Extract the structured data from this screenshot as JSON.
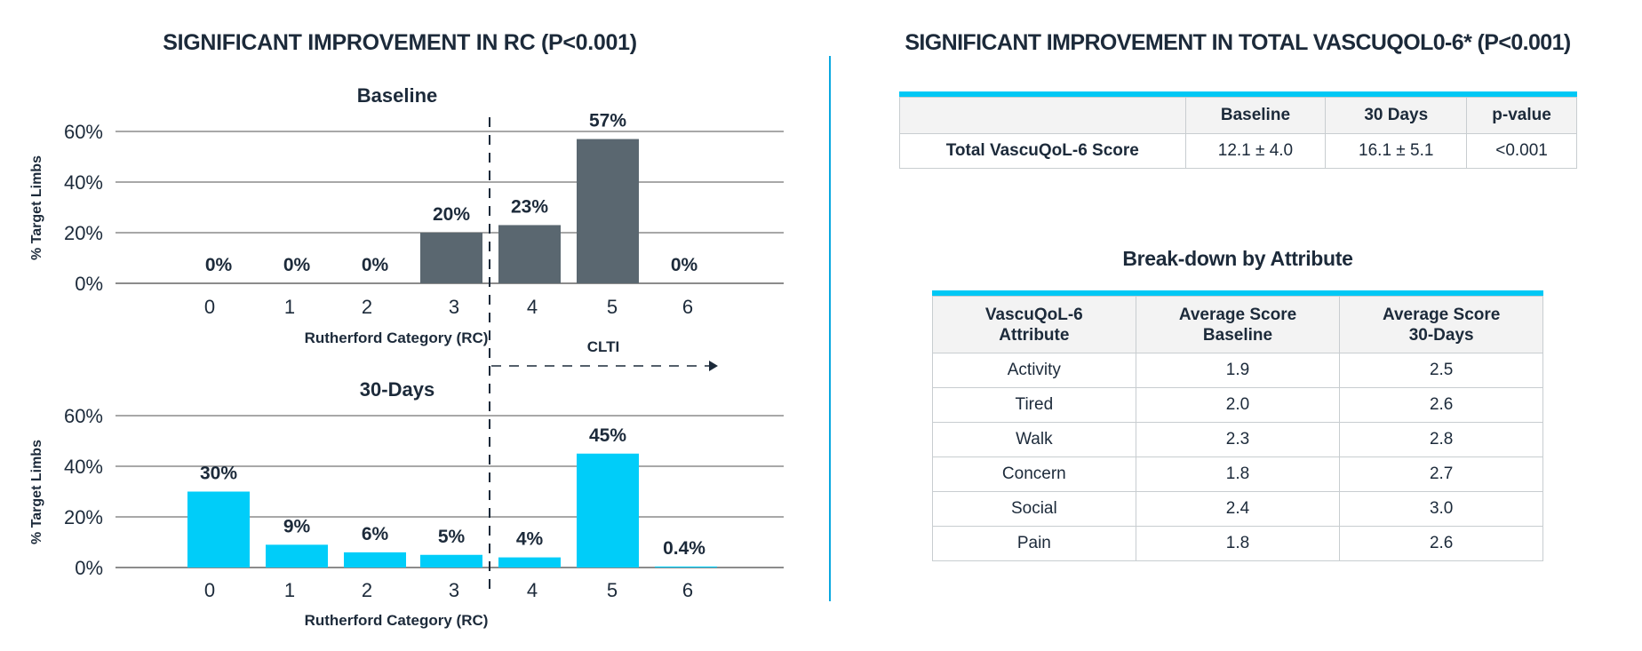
{
  "left_panel": {
    "title": "SIGNIFICANT IMPROVEMENT IN RC (P<0.001)"
  },
  "right_panel": {
    "title": "SIGNIFICANT IMPROVEMENT IN TOTAL VASCUQOL0-6* (P<0.001)",
    "score_table": {
      "headers": [
        "",
        "Baseline",
        "30 Days",
        "p-value"
      ],
      "rows": [
        [
          "Total VascuQoL-6 Score",
          "12.1 ± 4.0",
          "16.1 ± 5.1",
          "<0.001"
        ]
      ]
    },
    "attribute_section_title": "Break-down by Attribute",
    "attribute_table": {
      "headers": [
        [
          "VascuQoL-6",
          "Attribute"
        ],
        [
          "Average Score",
          "Baseline"
        ],
        [
          "Average Score",
          "30-Days"
        ]
      ],
      "rows": [
        [
          "Activity",
          "1.9",
          "2.5"
        ],
        [
          "Tired",
          "2.0",
          "2.6"
        ],
        [
          "Walk",
          "2.3",
          "2.8"
        ],
        [
          "Concern",
          "1.8",
          "2.7"
        ],
        [
          "Social",
          "2.4",
          "3.0"
        ],
        [
          "Pain",
          "1.8",
          "2.6"
        ]
      ]
    }
  },
  "colors": {
    "text": "#1c2a3a",
    "baseline_bar": "#5a6770",
    "thirty_day_bar": "#00cdf9",
    "gridline": "#8c8c8c",
    "table_accent": "#00c8f5",
    "divider": "#0aa8e0"
  },
  "chart_data": [
    {
      "type": "bar",
      "title": "Baseline",
      "xlabel": "Rutherford Category (RC)",
      "ylabel": "% Target Limbs",
      "categories": [
        "0",
        "1",
        "2",
        "3",
        "4",
        "5",
        "6"
      ],
      "values": [
        0,
        0,
        0,
        20,
        23,
        57,
        0
      ],
      "value_labels": [
        "0%",
        "0%",
        "0%",
        "20%",
        "23%",
        "57%",
        "0%"
      ],
      "yticks": [
        "0%",
        "20%",
        "40%",
        "60%"
      ],
      "ylim": [
        0,
        60
      ],
      "grid": true,
      "annotations": [
        {
          "type": "vertical-dashed-line",
          "between": [
            "3",
            "4"
          ]
        },
        {
          "type": "arrow",
          "label": "CLTI",
          "from": "4",
          "direction": "right"
        }
      ]
    },
    {
      "type": "bar",
      "title": "30-Days",
      "xlabel": "Rutherford Category (RC)",
      "ylabel": "% Target Limbs",
      "categories": [
        "0",
        "1",
        "2",
        "3",
        "4",
        "5",
        "6"
      ],
      "values": [
        30,
        9,
        6,
        5,
        4,
        45,
        0.4
      ],
      "value_labels": [
        "30%",
        "9%",
        "6%",
        "5%",
        "4%",
        "45%",
        "0.4%"
      ],
      "yticks": [
        "0%",
        "20%",
        "40%",
        "60%"
      ],
      "ylim": [
        0,
        60
      ],
      "grid": true
    }
  ]
}
